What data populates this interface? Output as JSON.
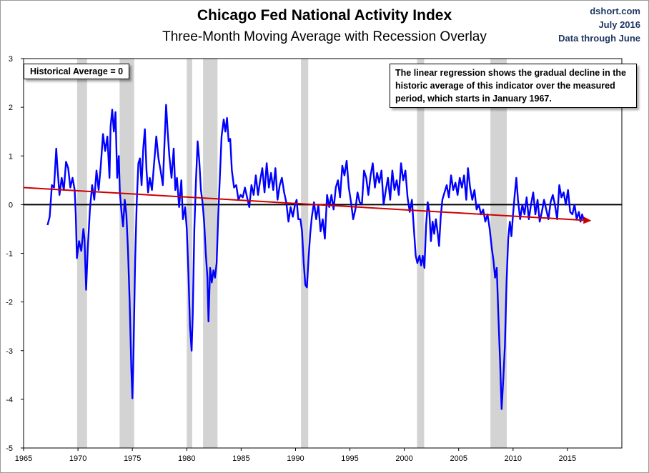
{
  "chart_data": {
    "type": "line",
    "title": "Chicago Fed National Activity Index",
    "subtitle": "Three-Month Moving Average with Recession Overlay",
    "credit": [
      "dshort.com",
      "July 2016",
      "Data through June"
    ],
    "xlim": [
      1965,
      2020
    ],
    "ylim": [
      -5,
      3
    ],
    "x_ticks": [
      "1965",
      "1970",
      "1975",
      "1980",
      "1985",
      "1990",
      "1995",
      "2000",
      "2005",
      "2010",
      "2015"
    ],
    "x_tick_values": [
      1965,
      1970,
      1975,
      1980,
      1985,
      1990,
      1995,
      2000,
      2005,
      2010,
      2015
    ],
    "y_ticks": [
      "3",
      "2",
      "1",
      "0",
      "-1",
      "-2",
      "-3",
      "-4",
      "-5"
    ],
    "y_tick_values": [
      3,
      2,
      1,
      0,
      -1,
      -2,
      -3,
      -4,
      -5
    ],
    "recessions": [
      [
        1969.92,
        1970.83
      ],
      [
        1973.83,
        1975.17
      ],
      [
        1980.0,
        1980.5
      ],
      [
        1981.5,
        1982.83
      ],
      [
        1990.5,
        1991.17
      ],
      [
        2001.17,
        2001.83
      ],
      [
        2007.92,
        2009.42
      ]
    ],
    "series": [
      {
        "name": "",
        "color": "#0000ff",
        "points": [
          [
            1967.2,
            -0.42
          ],
          [
            1967.4,
            -0.25
          ],
          [
            1967.6,
            0.4
          ],
          [
            1967.8,
            0.35
          ],
          [
            1968.0,
            1.15
          ],
          [
            1968.1,
            0.8
          ],
          [
            1968.3,
            0.2
          ],
          [
            1968.5,
            0.55
          ],
          [
            1968.7,
            0.3
          ],
          [
            1968.9,
            0.88
          ],
          [
            1969.1,
            0.75
          ],
          [
            1969.3,
            0.35
          ],
          [
            1969.5,
            0.55
          ],
          [
            1969.7,
            0.3
          ],
          [
            1969.8,
            -0.2
          ],
          [
            1969.9,
            -1.1
          ],
          [
            1970.1,
            -0.75
          ],
          [
            1970.3,
            -0.95
          ],
          [
            1970.5,
            -0.5
          ],
          [
            1970.6,
            -0.7
          ],
          [
            1970.75,
            -1.75
          ],
          [
            1970.9,
            -0.9
          ],
          [
            1971.1,
            -0.1
          ],
          [
            1971.3,
            0.4
          ],
          [
            1971.5,
            0.1
          ],
          [
            1971.7,
            0.7
          ],
          [
            1971.9,
            0.3
          ],
          [
            1972.1,
            0.8
          ],
          [
            1972.3,
            1.45
          ],
          [
            1972.5,
            1.1
          ],
          [
            1972.7,
            1.4
          ],
          [
            1972.9,
            0.55
          ],
          [
            1973.0,
            1.6
          ],
          [
            1973.15,
            1.95
          ],
          [
            1973.3,
            1.5
          ],
          [
            1973.45,
            1.9
          ],
          [
            1973.6,
            0.55
          ],
          [
            1973.75,
            1.0
          ],
          [
            1973.85,
            0.25
          ],
          [
            1974.0,
            -0.15
          ],
          [
            1974.15,
            -0.45
          ],
          [
            1974.3,
            0.1
          ],
          [
            1974.45,
            -0.2
          ],
          [
            1974.6,
            -0.95
          ],
          [
            1974.75,
            -2.0
          ],
          [
            1974.9,
            -3.35
          ],
          [
            1975.0,
            -3.98
          ],
          [
            1975.1,
            -3.1
          ],
          [
            1975.25,
            -1.2
          ],
          [
            1975.4,
            0.05
          ],
          [
            1975.55,
            0.85
          ],
          [
            1975.7,
            0.95
          ],
          [
            1975.85,
            0.4
          ],
          [
            1976.0,
            1.15
          ],
          [
            1976.15,
            1.55
          ],
          [
            1976.3,
            0.7
          ],
          [
            1976.45,
            0.25
          ],
          [
            1976.6,
            0.55
          ],
          [
            1976.8,
            0.3
          ],
          [
            1977.0,
            0.85
          ],
          [
            1977.2,
            1.4
          ],
          [
            1977.4,
            0.95
          ],
          [
            1977.6,
            0.7
          ],
          [
            1977.8,
            0.4
          ],
          [
            1977.95,
            1.25
          ],
          [
            1978.1,
            2.05
          ],
          [
            1978.25,
            1.5
          ],
          [
            1978.4,
            1.0
          ],
          [
            1978.6,
            0.55
          ],
          [
            1978.8,
            1.15
          ],
          [
            1978.95,
            0.3
          ],
          [
            1979.1,
            0.55
          ],
          [
            1979.3,
            -0.05
          ],
          [
            1979.5,
            0.5
          ],
          [
            1979.65,
            -0.3
          ],
          [
            1979.85,
            -0.05
          ],
          [
            1980.0,
            -0.5
          ],
          [
            1980.15,
            -1.4
          ],
          [
            1980.3,
            -2.5
          ],
          [
            1980.45,
            -3.0
          ],
          [
            1980.55,
            -2.3
          ],
          [
            1980.7,
            -0.5
          ],
          [
            1980.85,
            0.5
          ],
          [
            1981.0,
            1.3
          ],
          [
            1981.15,
            0.9
          ],
          [
            1981.3,
            0.3
          ],
          [
            1981.45,
            0.05
          ],
          [
            1981.6,
            -0.35
          ],
          [
            1981.75,
            -1.0
          ],
          [
            1981.9,
            -1.5
          ],
          [
            1982.0,
            -2.4
          ],
          [
            1982.15,
            -1.3
          ],
          [
            1982.3,
            -1.6
          ],
          [
            1982.45,
            -1.35
          ],
          [
            1982.6,
            -1.5
          ],
          [
            1982.75,
            -1.2
          ],
          [
            1982.9,
            -0.2
          ],
          [
            1983.05,
            0.6
          ],
          [
            1983.2,
            1.4
          ],
          [
            1983.4,
            1.75
          ],
          [
            1983.55,
            1.5
          ],
          [
            1983.7,
            1.78
          ],
          [
            1983.85,
            1.3
          ],
          [
            1984.0,
            1.35
          ],
          [
            1984.15,
            0.7
          ],
          [
            1984.35,
            0.35
          ],
          [
            1984.55,
            0.4
          ],
          [
            1984.75,
            0.1
          ],
          [
            1984.95,
            0.2
          ],
          [
            1985.15,
            0.15
          ],
          [
            1985.35,
            0.35
          ],
          [
            1985.55,
            0.15
          ],
          [
            1985.75,
            -0.05
          ],
          [
            1985.95,
            0.4
          ],
          [
            1986.15,
            0.2
          ],
          [
            1986.35,
            0.6
          ],
          [
            1986.55,
            0.2
          ],
          [
            1986.75,
            0.5
          ],
          [
            1986.95,
            0.75
          ],
          [
            1987.15,
            0.25
          ],
          [
            1987.35,
            0.85
          ],
          [
            1987.55,
            0.35
          ],
          [
            1987.75,
            0.65
          ],
          [
            1987.95,
            0.3
          ],
          [
            1988.15,
            0.75
          ],
          [
            1988.35,
            0.1
          ],
          [
            1988.55,
            0.4
          ],
          [
            1988.75,
            0.55
          ],
          [
            1988.95,
            0.25
          ],
          [
            1989.15,
            0.05
          ],
          [
            1989.35,
            -0.35
          ],
          [
            1989.55,
            -0.05
          ],
          [
            1989.75,
            -0.25
          ],
          [
            1989.95,
            0.0
          ],
          [
            1990.1,
            0.1
          ],
          [
            1990.25,
            -0.3
          ],
          [
            1990.45,
            -0.3
          ],
          [
            1990.6,
            -0.55
          ],
          [
            1990.75,
            -1.2
          ],
          [
            1990.9,
            -1.65
          ],
          [
            1991.05,
            -1.7
          ],
          [
            1991.2,
            -1.1
          ],
          [
            1991.35,
            -0.6
          ],
          [
            1991.5,
            -0.25
          ],
          [
            1991.7,
            0.05
          ],
          [
            1991.9,
            -0.3
          ],
          [
            1992.1,
            0.0
          ],
          [
            1992.3,
            -0.55
          ],
          [
            1992.5,
            -0.3
          ],
          [
            1992.7,
            -0.7
          ],
          [
            1992.9,
            0.2
          ],
          [
            1993.1,
            -0.05
          ],
          [
            1993.3,
            0.2
          ],
          [
            1993.5,
            -0.1
          ],
          [
            1993.7,
            0.35
          ],
          [
            1993.9,
            0.5
          ],
          [
            1994.1,
            0.15
          ],
          [
            1994.3,
            0.8
          ],
          [
            1994.5,
            0.6
          ],
          [
            1994.7,
            0.9
          ],
          [
            1994.9,
            0.35
          ],
          [
            1995.1,
            0.05
          ],
          [
            1995.3,
            -0.3
          ],
          [
            1995.5,
            -0.1
          ],
          [
            1995.7,
            0.25
          ],
          [
            1995.9,
            0.05
          ],
          [
            1996.1,
            0.0
          ],
          [
            1996.3,
            0.7
          ],
          [
            1996.5,
            0.55
          ],
          [
            1996.7,
            0.2
          ],
          [
            1996.9,
            0.6
          ],
          [
            1997.1,
            0.85
          ],
          [
            1997.3,
            0.35
          ],
          [
            1997.5,
            0.65
          ],
          [
            1997.7,
            0.45
          ],
          [
            1997.9,
            0.7
          ],
          [
            1998.1,
            0.0
          ],
          [
            1998.3,
            0.3
          ],
          [
            1998.5,
            0.55
          ],
          [
            1998.7,
            0.1
          ],
          [
            1998.9,
            0.7
          ],
          [
            1999.1,
            0.3
          ],
          [
            1999.3,
            0.5
          ],
          [
            1999.5,
            0.2
          ],
          [
            1999.7,
            0.85
          ],
          [
            1999.9,
            0.5
          ],
          [
            2000.1,
            0.7
          ],
          [
            2000.3,
            0.15
          ],
          [
            2000.5,
            -0.15
          ],
          [
            2000.7,
            0.1
          ],
          [
            2000.9,
            -0.55
          ],
          [
            2001.05,
            -1.05
          ],
          [
            2001.2,
            -1.2
          ],
          [
            2001.4,
            -1.05
          ],
          [
            2001.55,
            -1.25
          ],
          [
            2001.7,
            -1.05
          ],
          [
            2001.85,
            -1.3
          ],
          [
            2002.0,
            -0.45
          ],
          [
            2002.15,
            0.05
          ],
          [
            2002.3,
            -0.15
          ],
          [
            2002.45,
            -0.75
          ],
          [
            2002.6,
            -0.35
          ],
          [
            2002.75,
            -0.6
          ],
          [
            2002.9,
            -0.3
          ],
          [
            2003.05,
            -0.55
          ],
          [
            2003.2,
            -0.85
          ],
          [
            2003.35,
            -0.25
          ],
          [
            2003.5,
            0.1
          ],
          [
            2003.7,
            0.25
          ],
          [
            2003.9,
            0.4
          ],
          [
            2004.1,
            0.15
          ],
          [
            2004.3,
            0.6
          ],
          [
            2004.5,
            0.3
          ],
          [
            2004.7,
            0.45
          ],
          [
            2004.9,
            0.2
          ],
          [
            2005.1,
            0.55
          ],
          [
            2005.3,
            0.35
          ],
          [
            2005.5,
            0.6
          ],
          [
            2005.7,
            0.1
          ],
          [
            2005.85,
            0.75
          ],
          [
            2006.05,
            0.35
          ],
          [
            2006.25,
            0.1
          ],
          [
            2006.45,
            0.3
          ],
          [
            2006.65,
            -0.1
          ],
          [
            2006.85,
            0.0
          ],
          [
            2007.05,
            -0.2
          ],
          [
            2007.25,
            -0.1
          ],
          [
            2007.45,
            -0.35
          ],
          [
            2007.65,
            -0.2
          ],
          [
            2007.85,
            -0.5
          ],
          [
            2008.05,
            -0.9
          ],
          [
            2008.2,
            -1.15
          ],
          [
            2008.35,
            -1.5
          ],
          [
            2008.5,
            -1.3
          ],
          [
            2008.65,
            -2.3
          ],
          [
            2008.8,
            -3.2
          ],
          [
            2008.95,
            -4.2
          ],
          [
            2009.1,
            -3.6
          ],
          [
            2009.25,
            -2.9
          ],
          [
            2009.4,
            -1.6
          ],
          [
            2009.55,
            -0.7
          ],
          [
            2009.7,
            -0.35
          ],
          [
            2009.85,
            -0.65
          ],
          [
            2010.0,
            -0.2
          ],
          [
            2010.15,
            0.2
          ],
          [
            2010.3,
            0.55
          ],
          [
            2010.45,
            0.1
          ],
          [
            2010.65,
            -0.3
          ],
          [
            2010.85,
            0.0
          ],
          [
            2011.05,
            -0.2
          ],
          [
            2011.25,
            0.15
          ],
          [
            2011.45,
            -0.3
          ],
          [
            2011.65,
            0.0
          ],
          [
            2011.85,
            0.25
          ],
          [
            2012.05,
            -0.2
          ],
          [
            2012.25,
            0.1
          ],
          [
            2012.45,
            -0.35
          ],
          [
            2012.65,
            -0.15
          ],
          [
            2012.85,
            0.1
          ],
          [
            2013.05,
            -0.1
          ],
          [
            2013.25,
            -0.3
          ],
          [
            2013.45,
            0.05
          ],
          [
            2013.65,
            0.2
          ],
          [
            2013.85,
            0.0
          ],
          [
            2014.05,
            -0.3
          ],
          [
            2014.25,
            0.4
          ],
          [
            2014.45,
            0.15
          ],
          [
            2014.65,
            0.25
          ],
          [
            2014.85,
            0.0
          ],
          [
            2015.05,
            0.3
          ],
          [
            2015.25,
            -0.15
          ],
          [
            2015.45,
            -0.2
          ],
          [
            2015.65,
            0.0
          ],
          [
            2015.85,
            -0.3
          ],
          [
            2016.05,
            -0.15
          ],
          [
            2016.2,
            -0.35
          ],
          [
            2016.35,
            -0.2
          ],
          [
            2016.5,
            -0.32
          ]
        ]
      }
    ],
    "regression": {
      "name": "",
      "color": "#cc0000",
      "start": [
        1965,
        0.35
      ],
      "end": [
        2017.2,
        -0.33
      ]
    },
    "zero_line": 0,
    "annotations": {
      "historical_average": "Historical Average = 0",
      "regression_note": "The linear regression shows the gradual decline in the historic average of this indicator over the measured period, which starts in January 1967."
    },
    "grid": false,
    "legend": "none"
  },
  "colors": {
    "series": "#0000ff",
    "regression": "#cc0000",
    "recession": "#d3d3d3",
    "zero_line": "#000000",
    "axis_tick_text": "#000000",
    "credit_text": "#1f3864"
  }
}
